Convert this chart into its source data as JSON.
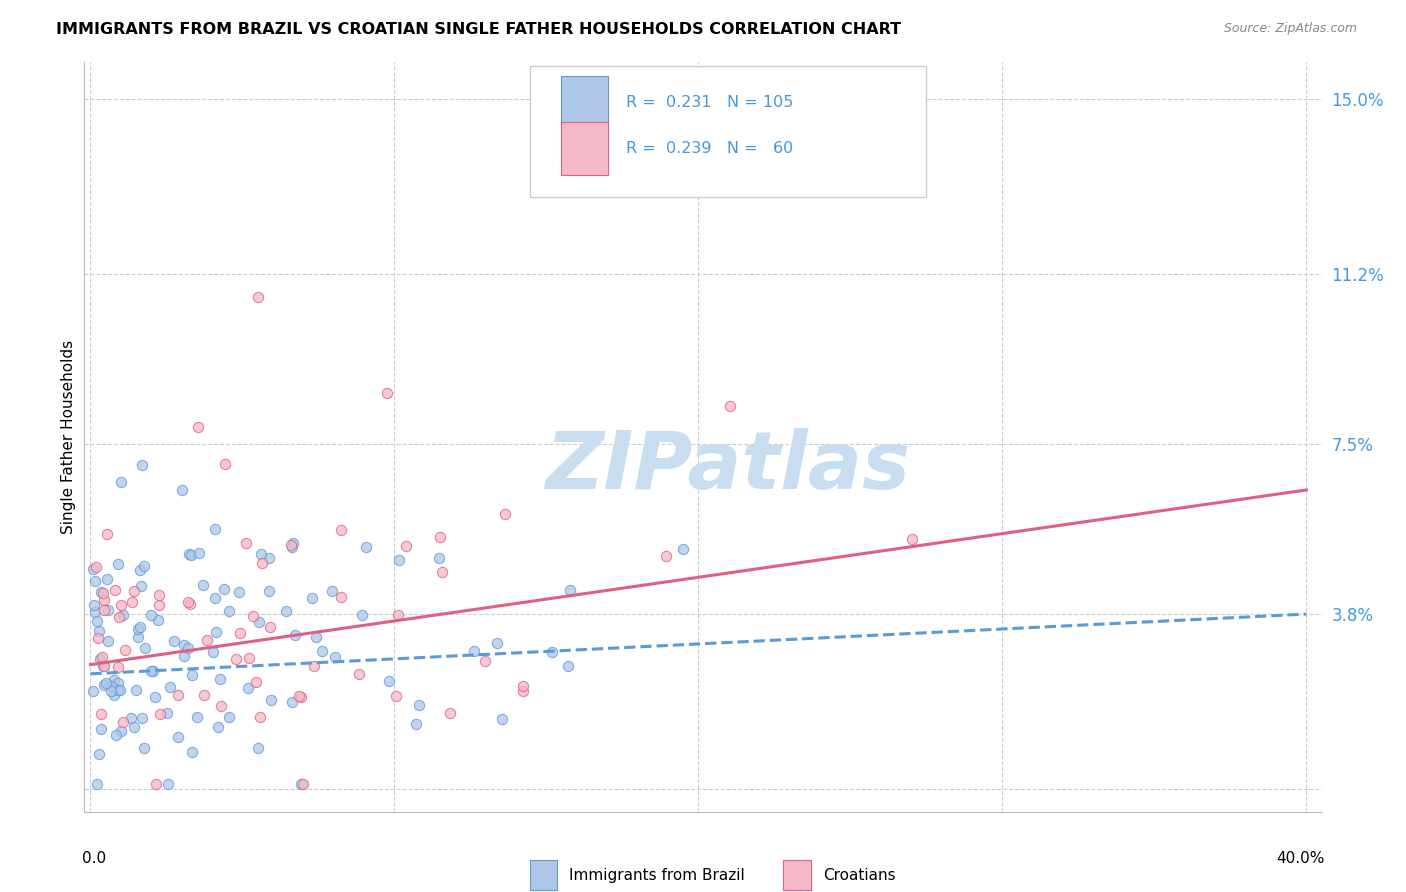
{
  "title": "IMMIGRANTS FROM BRAZIL VS CROATIAN SINGLE FATHER HOUSEHOLDS CORRELATION CHART",
  "source": "Source: ZipAtlas.com",
  "ylabel": "Single Father Households",
  "yticks": [
    0.0,
    0.038,
    0.075,
    0.112,
    0.15
  ],
  "ytick_labels": [
    "",
    "3.8%",
    "7.5%",
    "11.2%",
    "15.0%"
  ],
  "xticks": [
    0.0,
    0.1,
    0.2,
    0.3,
    0.4
  ],
  "xlim": [
    -0.002,
    0.405
  ],
  "ylim": [
    -0.005,
    0.158
  ],
  "legend_label1": "Immigrants from Brazil",
  "legend_label2": "Croatians",
  "brazil_color": "#aec6e8",
  "brazil_edge_color": "#5b9bd5",
  "croatian_color": "#f4b8c8",
  "croatian_edge_color": "#e06080",
  "brazil_line_color": "#5b9bd5",
  "croatian_line_color": "#e06080",
  "ytick_color": "#4499dd",
  "watermark_color": "#c8ddf0",
  "grid_color": "#cccccc",
  "background_color": "#ffffff",
  "right_ytick_fontsize": 12,
  "scatter_size": 55,
  "scatter_alpha": 0.75,
  "scatter_lw": 0.8
}
